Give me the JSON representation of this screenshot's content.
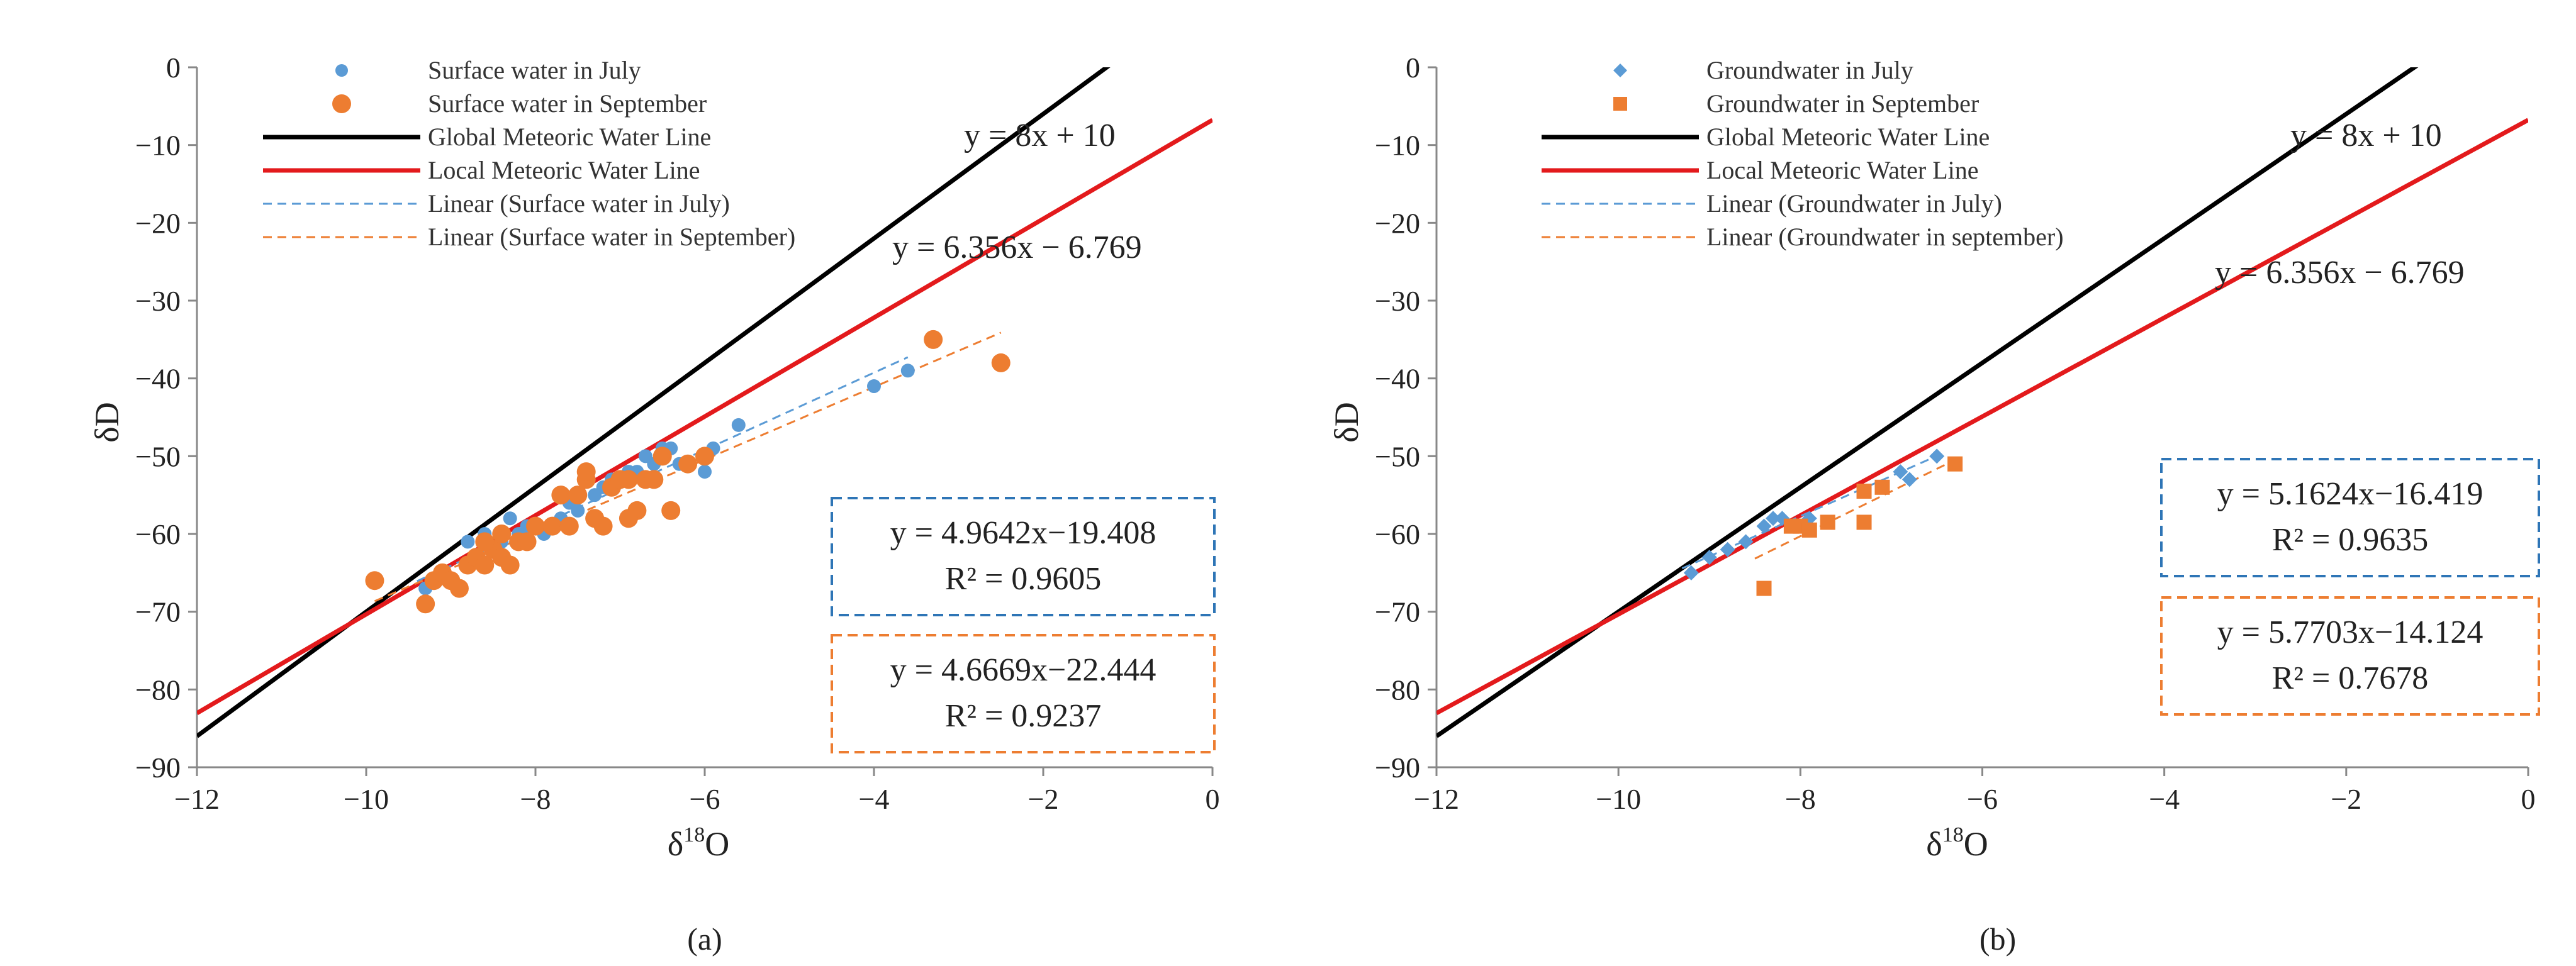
{
  "chart_data": [
    {
      "type": "scatter",
      "panel": "(a)",
      "xlabel": "δ18O",
      "ylabel": "δD",
      "xlim": [
        -12,
        0
      ],
      "ylim": [
        -90,
        0
      ],
      "xticks": [
        -12,
        -10,
        -8,
        -6,
        -4,
        -2,
        0
      ],
      "yticks": [
        0,
        -10,
        -20,
        -30,
        -40,
        -50,
        -60,
        -70,
        -80,
        -90
      ],
      "xtick_labels": [
        "−12",
        "−10",
        "−8",
        "−6",
        "−4",
        "−2",
        "0"
      ],
      "ytick_labels": [
        "0",
        "−10",
        "−20",
        "−30",
        "−40",
        "−50",
        "−60",
        "−70",
        "−80",
        "−90"
      ],
      "series": [
        {
          "name": "Surface water in July",
          "marker": "circle-small",
          "color": "#5b9bd5",
          "x": [
            -9.3,
            -9.1,
            -8.8,
            -8.6,
            -8.5,
            -8.3,
            -8.2,
            -8.1,
            -7.9,
            -7.7,
            -7.6,
            -7.5,
            -7.3,
            -7.2,
            -7.1,
            -7.0,
            -6.9,
            -6.8,
            -6.6,
            -6.5,
            -6.4,
            -6.3,
            -6.0,
            -5.9,
            -5.6,
            -4.0,
            -3.6,
            -8.4,
            -7.8,
            -6.7
          ],
          "y": [
            -67,
            -65,
            -61,
            -60,
            -62,
            -58,
            -60,
            -59,
            -60,
            -58,
            -56,
            -57,
            -55,
            -54,
            -53,
            -53,
            -52,
            -52,
            -51,
            -49,
            -49,
            -51,
            -52,
            -49,
            -46,
            -41,
            -39,
            -61,
            -59,
            -50
          ]
        },
        {
          "name": "Surface water in September",
          "marker": "circle-large",
          "color": "#ed7d31",
          "x": [
            -9.9,
            -9.3,
            -9.2,
            -9.1,
            -9.0,
            -8.9,
            -8.8,
            -8.7,
            -8.6,
            -8.5,
            -8.4,
            -8.3,
            -8.2,
            -8.1,
            -8.0,
            -7.8,
            -7.7,
            -7.6,
            -7.5,
            -7.4,
            -7.3,
            -7.2,
            -7.1,
            -7.0,
            -6.9,
            -6.8,
            -6.7,
            -6.6,
            -6.5,
            -6.4,
            -6.2,
            -6.0,
            -3.3,
            -2.5,
            -8.6,
            -8.4,
            -7.4,
            -6.9
          ],
          "y": [
            -66,
            -69,
            -66,
            -65,
            -66,
            -67,
            -64,
            -63,
            -64,
            -62,
            -63,
            -64,
            -61,
            -61,
            -59,
            -59,
            -55,
            -59,
            -55,
            -53,
            -58,
            -59,
            -54,
            -53,
            -53,
            -57,
            -53,
            -53,
            -50,
            -57,
            -51,
            -50,
            -35,
            -38,
            -61,
            -60,
            -52,
            -58
          ]
        }
      ],
      "lines": [
        {
          "name": "Global Meteoric Water Line",
          "slope": 8,
          "intercept": 10,
          "color": "#000000",
          "style": "solid"
        },
        {
          "name": "Local Meteoric Water Line",
          "slope": 6.356,
          "intercept": -6.769,
          "color": "#e31a1c",
          "style": "solid"
        },
        {
          "name": "Linear (Surface water in July)",
          "slope": 4.9642,
          "intercept": -19.408,
          "x_range": [
            -9.4,
            -3.6
          ],
          "color": "#5b9bd5",
          "style": "dashed"
        },
        {
          "name": "Linear (Surface water in September)",
          "slope": 4.6669,
          "intercept": -22.444,
          "x_range": [
            -9.9,
            -2.5
          ],
          "color": "#ed7d31",
          "style": "dashed"
        }
      ],
      "annotations": {
        "gmwl_eq": "y = 8x + 10",
        "lmwl_eq": "y = 6.356x − 6.769",
        "fit1_eq": "y = 4.9642x−19.408",
        "fit1_r2": "R² = 0.9605",
        "fit2_eq": "y = 4.6669x−22.444",
        "fit2_r2": "R² = 0.9237"
      }
    },
    {
      "type": "scatter",
      "panel": "(b)",
      "xlabel": "δ18O",
      "ylabel": "δD",
      "xlim": [
        -12,
        0
      ],
      "ylim": [
        -90,
        0
      ],
      "xticks": [
        -12,
        -10,
        -8,
        -6,
        -4,
        -2,
        0
      ],
      "yticks": [
        0,
        -10,
        -20,
        -30,
        -40,
        -50,
        -60,
        -70,
        -80,
        -90
      ],
      "xtick_labels": [
        "−12",
        "−10",
        "−8",
        "−6",
        "−4",
        "−2",
        "0"
      ],
      "ytick_labels": [
        "0",
        "−10",
        "−20",
        "−30",
        "−40",
        "−50",
        "−60",
        "−70",
        "−80",
        "−90"
      ],
      "series": [
        {
          "name": "Groundwater in July",
          "marker": "diamond",
          "color": "#5b9bd5",
          "x": [
            -9.2,
            -9.0,
            -8.8,
            -8.6,
            -8.4,
            -8.3,
            -8.2,
            -8.0,
            -7.9,
            -6.9,
            -6.8,
            -6.5
          ],
          "y": [
            -65,
            -63,
            -62,
            -61,
            -59,
            -58,
            -58,
            -59,
            -58,
            -52,
            -53,
            -50
          ]
        },
        {
          "name": "Groundwater in September",
          "marker": "square",
          "color": "#ed7d31",
          "x": [
            -8.4,
            -8.1,
            -8.0,
            -7.9,
            -7.7,
            -7.3,
            -7.3,
            -7.1,
            -6.3
          ],
          "y": [
            -67,
            -59,
            -59,
            -59.5,
            -58.5,
            -58.5,
            -54.5,
            -54,
            -51
          ]
        }
      ],
      "lines": [
        {
          "name": "Global Meteoric Water Line",
          "slope": 8,
          "intercept": 10,
          "color": "#000000",
          "style": "solid"
        },
        {
          "name": "Local Meteoric Water Line",
          "slope": 6.356,
          "intercept": -6.769,
          "color": "#e31a1c",
          "style": "solid"
        },
        {
          "name": "Linear (Groundwater in July)",
          "slope": 5.1624,
          "intercept": -16.419,
          "x_range": [
            -9.3,
            -6.4
          ],
          "color": "#5b9bd5",
          "style": "dashed"
        },
        {
          "name": "Linear (Groundwater in september)",
          "slope": 5.7703,
          "intercept": -14.124,
          "x_range": [
            -8.5,
            -6.3
          ],
          "color": "#ed7d31",
          "style": "dashed"
        }
      ],
      "annotations": {
        "gmwl_eq": "y = 8x + 10",
        "lmwl_eq": "y = 6.356x − 6.769",
        "fit1_eq": "y = 5.1624x−16.419",
        "fit1_r2": "R² = 0.9635",
        "fit2_eq": "y = 5.7703x−14.124",
        "fit2_r2": "R² = 0.7678"
      }
    }
  ]
}
